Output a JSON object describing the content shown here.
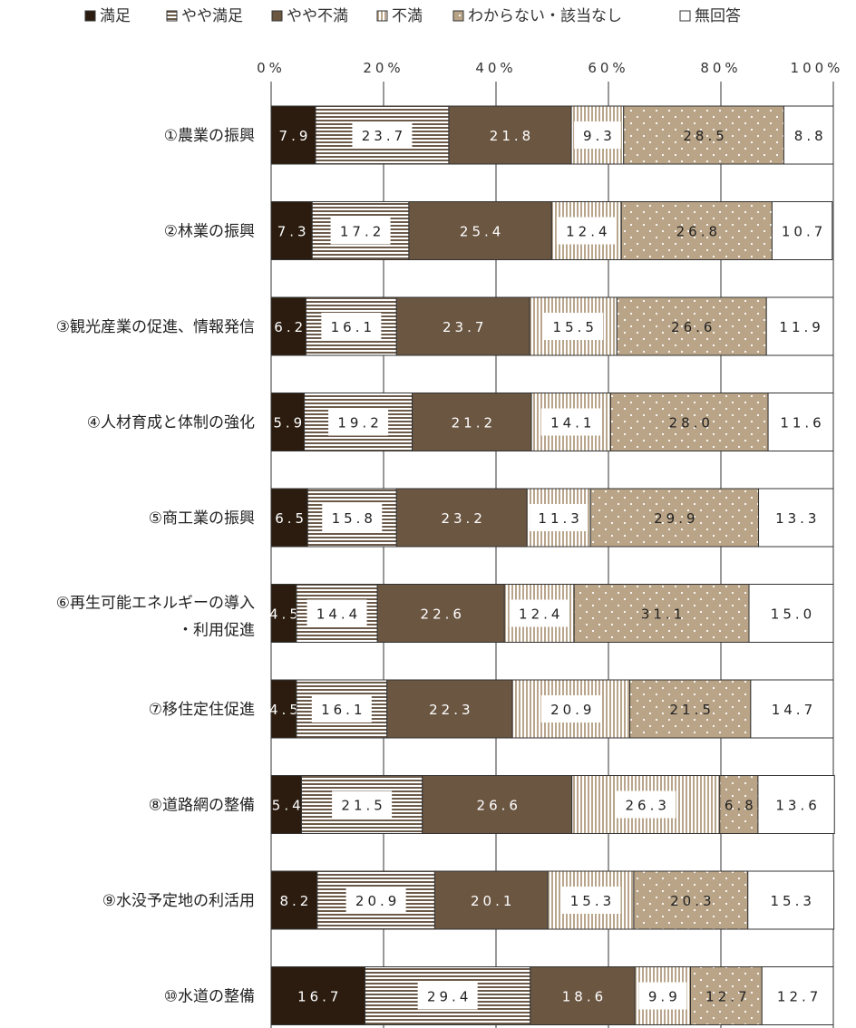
{
  "chart_data": {
    "type": "bar",
    "orientation": "horizontal",
    "stacked": true,
    "xlim": [
      0,
      100
    ],
    "x_ticks": [
      "0%",
      "20%",
      "40%",
      "60%",
      "80%",
      "100%"
    ],
    "legend_position": "top",
    "grid": "vertical",
    "categories": [
      [
        "①農業の振興"
      ],
      [
        "②林業の振興"
      ],
      [
        "③観光産業の促進、情報発信"
      ],
      [
        "④人材育成と体制の強化"
      ],
      [
        "⑤商工業の振興"
      ],
      [
        "⑥再生可能エネルギーの導入",
        "・利用促進"
      ],
      [
        "⑦移住定住促進"
      ],
      [
        "⑧道路網の整備"
      ],
      [
        "⑨水没予定地の利活用"
      ],
      [
        "⑩水道の整備"
      ]
    ],
    "series": [
      {
        "name": "満足",
        "color": "#2b1c0f",
        "pattern": "solid",
        "values": [
          7.9,
          7.3,
          6.2,
          5.9,
          6.5,
          4.5,
          4.5,
          5.4,
          8.2,
          16.7
        ],
        "labels": [
          "7.9",
          "7.3",
          "6.2",
          "5.9",
          "6.5",
          "4.5",
          "4.5",
          "5.4",
          "8.2",
          "16.7"
        ]
      },
      {
        "name": "やや満足",
        "color": "#6b5a4a",
        "pattern": "horizontal-lines",
        "values": [
          23.7,
          17.2,
          16.1,
          19.2,
          15.8,
          14.4,
          16.1,
          21.5,
          20.9,
          29.4
        ],
        "labels": [
          "23.7",
          "17.2",
          "16.1",
          "19.2",
          "15.8",
          "14.4",
          "16.1",
          "21.5",
          "20.9",
          "29.4"
        ]
      },
      {
        "name": "やや不満",
        "color": "#6b5642",
        "pattern": "solid",
        "values": [
          21.8,
          25.4,
          23.7,
          21.2,
          23.2,
          22.6,
          22.3,
          26.6,
          20.1,
          18.6
        ],
        "labels": [
          "21.8",
          "25.4",
          "23.7",
          "21.2",
          "23.2",
          "22.6",
          "22.3",
          "26.6",
          "20.1",
          "18.6"
        ]
      },
      {
        "name": "不満",
        "color": "#b8a58c",
        "pattern": "vertical-lines",
        "values": [
          9.3,
          12.4,
          15.5,
          14.1,
          11.3,
          12.4,
          20.9,
          26.3,
          15.3,
          9.9
        ],
        "labels": [
          "9.3",
          "12.4",
          "15.5",
          "14.1",
          "11.3",
          "12.4",
          "20.9",
          "26.3",
          "15.3",
          "9.9"
        ]
      },
      {
        "name": "わからない・該当なし",
        "color": "#b9a487",
        "pattern": "dots",
        "values": [
          28.5,
          26.8,
          26.6,
          28.0,
          29.9,
          31.1,
          21.5,
          6.8,
          20.3,
          12.7
        ],
        "labels": [
          "28.5",
          "26.8",
          "26.6",
          "28.0",
          "29.9",
          "31.1",
          "21.5",
          "6.8",
          "20.3",
          "12.7"
        ]
      },
      {
        "name": "無回答",
        "color": "#ffffff",
        "pattern": "solid",
        "values": [
          8.8,
          10.7,
          11.9,
          11.6,
          13.3,
          15.0,
          14.7,
          13.6,
          15.3,
          12.7
        ],
        "labels": [
          "8.8",
          "10.7",
          "11.9",
          "11.6",
          "13.3",
          "15.0",
          "14.7",
          "13.6",
          "15.3",
          "12.7"
        ]
      }
    ]
  }
}
